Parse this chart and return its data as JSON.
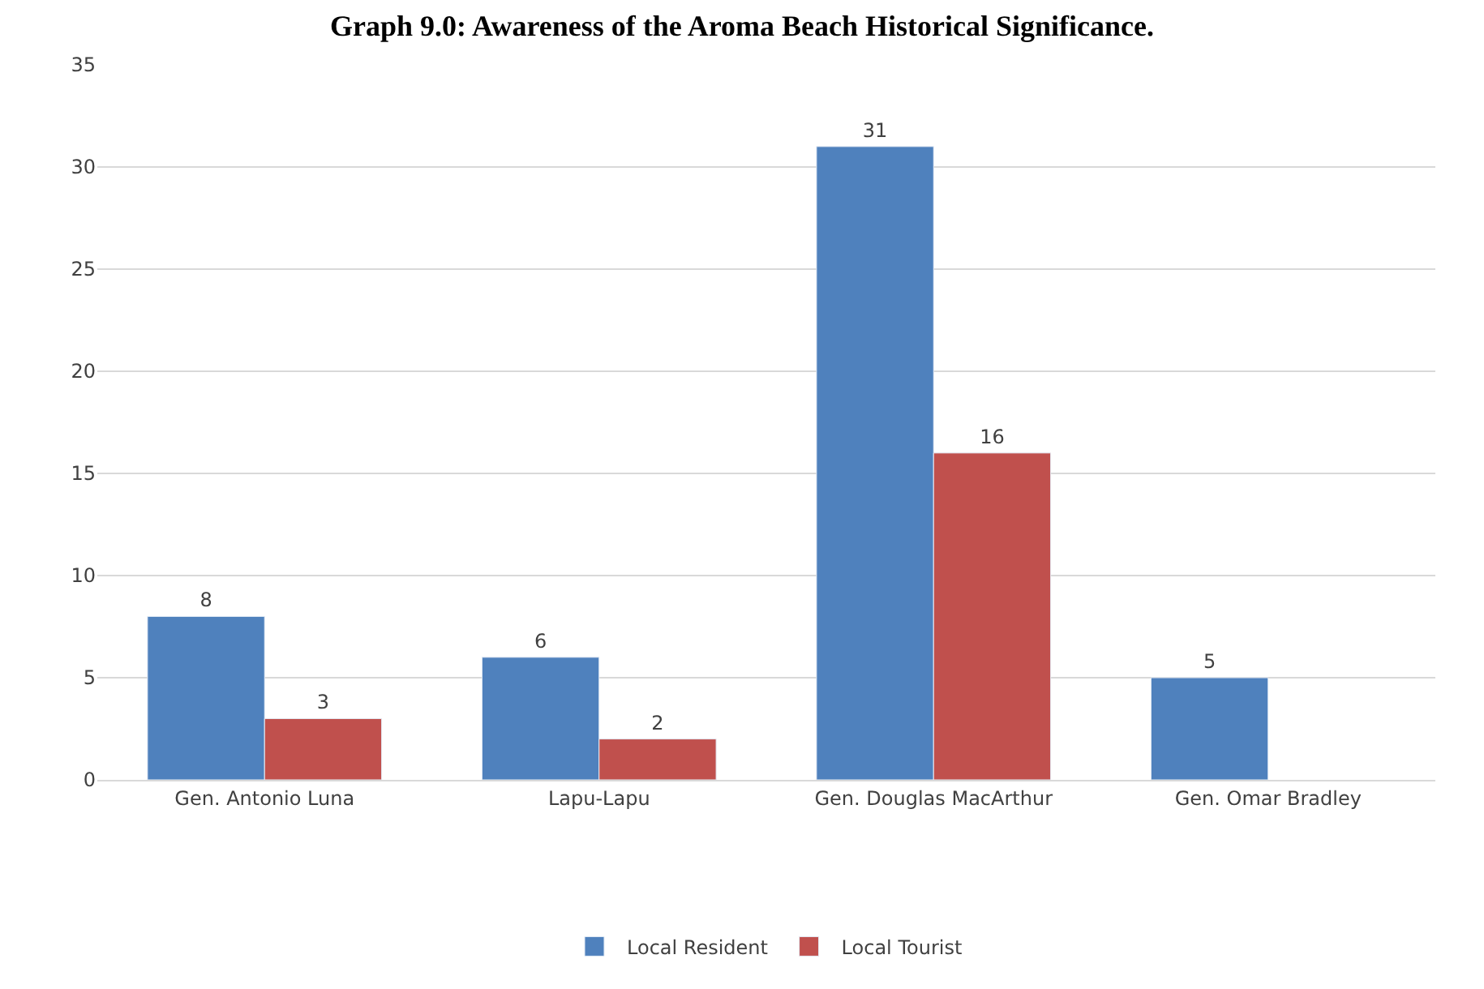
{
  "chart_data": {
    "type": "bar",
    "title": "Graph 9.0: Awareness of the Aroma Beach Historical Significance.",
    "categories": [
      "Gen. Antonio Luna",
      "Lapu-Lapu",
      "Gen. Douglas MacArthur",
      "Gen. Omar Bradley"
    ],
    "series": [
      {
        "name": "Local Resident",
        "color": "#4f81bd",
        "values": [
          8,
          6,
          31,
          5
        ]
      },
      {
        "name": "Local Tourist",
        "color": "#c0504d",
        "values": [
          3,
          2,
          16,
          null
        ]
      }
    ],
    "ylim": [
      0,
      35
    ],
    "yticks": [
      0,
      5,
      10,
      15,
      20,
      25,
      30,
      35
    ],
    "grid": "y",
    "legend": "bottom",
    "data_labels": true
  }
}
